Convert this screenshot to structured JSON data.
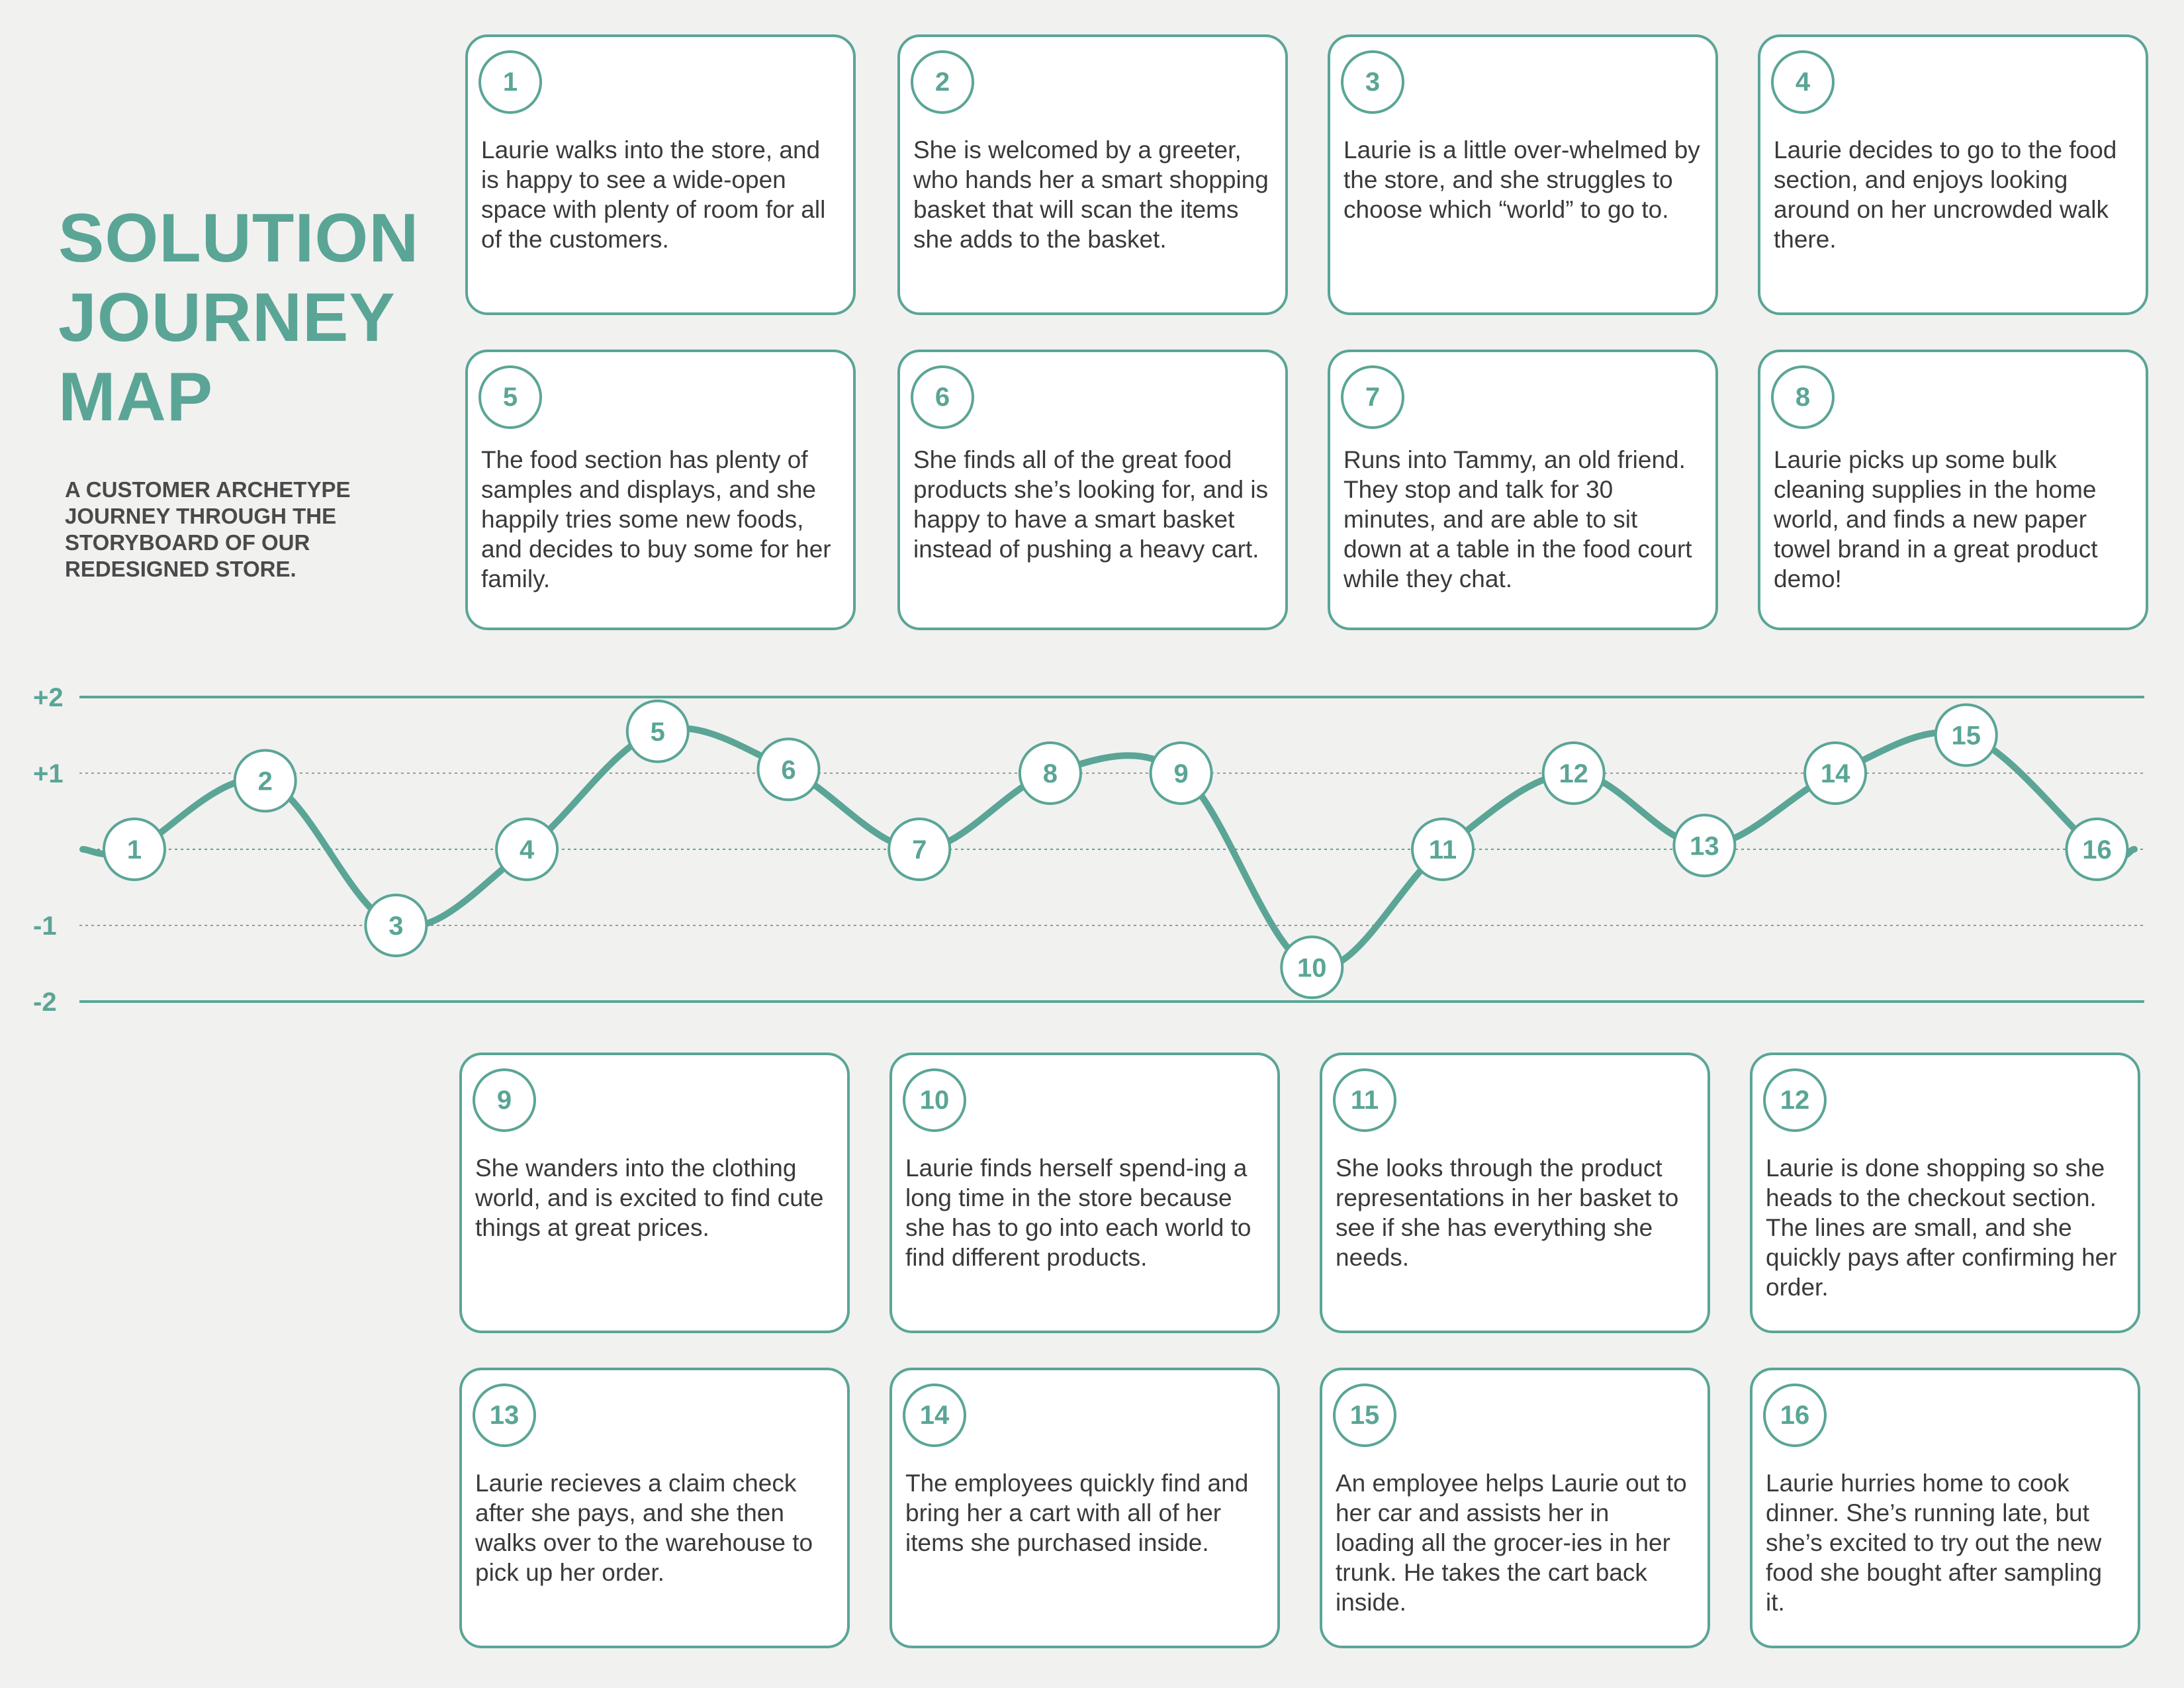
{
  "header": {
    "title_lines": [
      "SOLUTION",
      "JOURNEY",
      "MAP"
    ],
    "subtitle": "A CUSTOMER ARCHETYPE JOURNEY THROUGH THE STORYBOARD OF OUR REDESIGNED STORE."
  },
  "colors": {
    "accent": "#5aa596",
    "background": "#f1f1f0",
    "text": "#3a3a3a"
  },
  "cards": [
    {
      "number": "1",
      "text": "Laurie walks into the store, and is happy to see a wide-open space with plenty of room for all of the customers."
    },
    {
      "number": "2",
      "text": "She is welcomed by a greeter, who hands her a smart shopping basket that will scan the items she adds to the basket."
    },
    {
      "number": "3",
      "text": "Laurie is a little over-whelmed by the store, and she struggles to choose which “world” to go to."
    },
    {
      "number": "4",
      "text": "Laurie decides to go to the food section, and enjoys looking around on her uncrowded walk there."
    },
    {
      "number": "5",
      "text": "The food section has plenty of samples and displays, and she happily tries some new foods, and decides to buy some for her family."
    },
    {
      "number": "6",
      "text": "She finds all of the great food products she’s looking for, and is happy to have a smart basket instead of pushing a heavy cart."
    },
    {
      "number": "7",
      "text": "Runs into Tammy, an old friend. They stop and talk for 30 minutes, and are able to sit down at a table in the food court while they chat."
    },
    {
      "number": "8",
      "text": "Laurie picks up some bulk cleaning supplies in the home world, and finds a new paper towel brand in a great product demo!"
    },
    {
      "number": "9",
      "text": "She wanders into the clothing world, and is excited to find cute things at great prices."
    },
    {
      "number": "10",
      "text": "Laurie finds herself spend-ing a long time in the store because she has to go into each world to find different products."
    },
    {
      "number": "11",
      "text": "She looks through the product representations in her basket to see if she has everything she needs."
    },
    {
      "number": "12",
      "text": "Laurie is done shopping so she heads to the checkout section. The lines are small, and she quickly pays after confirming her order."
    },
    {
      "number": "13",
      "text": "Laurie recieves a claim check after she pays, and she then walks over to the warehouse to pick up her order."
    },
    {
      "number": "14",
      "text": "The employees quickly find and bring her a cart with all of her items she purchased inside."
    },
    {
      "number": "15",
      "text": "An employee helps Laurie out to her car and assists her in loading all the grocer-ies in her trunk. He takes the cart back inside."
    },
    {
      "number": "16",
      "text": "Laurie hurries home to cook dinner. She’s running late, but she’s excited to try out the new food she bought after sampling it."
    }
  ],
  "chart_data": {
    "type": "line",
    "y_ticks": [
      "+2",
      "+1",
      "-1",
      "-2"
    ],
    "y_tick_values": [
      2,
      1,
      -1,
      -2
    ],
    "ylim": [
      -2,
      2
    ],
    "x": [
      "1",
      "2",
      "3",
      "4",
      "5",
      "6",
      "7",
      "8",
      "9",
      "10",
      "11",
      "12",
      "13",
      "14",
      "15",
      "16"
    ],
    "values": [
      0.0,
      0.9,
      -1.0,
      0.0,
      1.55,
      1.05,
      0.0,
      1.0,
      1.0,
      -1.55,
      0.0,
      1.0,
      0.05,
      1.0,
      1.5,
      0.0
    ]
  }
}
